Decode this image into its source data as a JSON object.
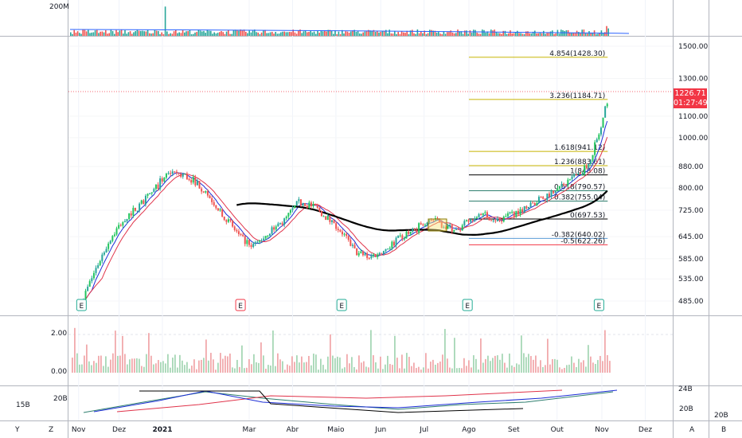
{
  "chart_data": {
    "type": "candlestick",
    "price_axis": {
      "ticks": [
        1500,
        1300,
        1100,
        1000,
        880,
        800,
        725,
        645,
        585,
        535,
        485
      ],
      "tick_labels": [
        "1500.00",
        "1300.00",
        "1100.00",
        "1000.00",
        "880.00",
        "800.00",
        "725.00",
        "645.00",
        "585.00",
        "535.00",
        "485.00"
      ],
      "ylim": [
        462,
        1600
      ],
      "scale": "log"
    },
    "time_axis": {
      "labels": [
        "Nov",
        "Dez",
        "2021",
        "Mar",
        "Abr",
        "Maio",
        "Jun",
        "Jul",
        "Ago",
        "Set",
        "Out",
        "Nov",
        "Dez"
      ],
      "range": [
        "2020-10-28",
        "2021-12-20"
      ]
    },
    "last_price": {
      "value": "1226.71",
      "countdown": "01:27:49",
      "color": "#f23645"
    },
    "fibonacci": {
      "color_lines": [
        "#c8b400",
        "#000000",
        "#2f7f6f",
        "#5b9cd6",
        "#f23645"
      ],
      "levels": [
        {
          "label": "4.854(1428.30)",
          "price": 1428.3,
          "color": "#c8b400"
        },
        {
          "label": "3.236(1184.71)",
          "price": 1184.71,
          "color": "#c8b400"
        },
        {
          "label": "1.618(941.12)",
          "price": 941.12,
          "color": "#c8b400"
        },
        {
          "label": "1.236(883.61)",
          "price": 883.61,
          "color": "#c8b400"
        },
        {
          "label": "1(848.08)",
          "price": 848.08,
          "color": "#000000"
        },
        {
          "label": "0.618(790.57)",
          "price": 790.57,
          "color": "#2f7f6f"
        },
        {
          "label": "0.382(755.04)",
          "price": 755.04,
          "color": "#2f7f6f"
        },
        {
          "label": "0(697.53)",
          "price": 697.53,
          "color": "#000000"
        },
        {
          "label": "-0.382(640.02)",
          "price": 640.02,
          "color": "#5b9cd6"
        },
        {
          "label": "-0.5(622.26)",
          "price": 622.26,
          "color": "#f23645"
        }
      ]
    },
    "price_series": {
      "dates": [
        "2020-11-06",
        "2020-11-16",
        "2020-11-26",
        "2020-12-06",
        "2020-12-16",
        "2020-12-26",
        "2021-01-05",
        "2021-01-15",
        "2021-01-25",
        "2021-02-04",
        "2021-02-14",
        "2021-02-24",
        "2021-03-06",
        "2021-03-16",
        "2021-03-26",
        "2021-04-05",
        "2021-04-15",
        "2021-04-25",
        "2021-05-05",
        "2021-05-15",
        "2021-05-25",
        "2021-06-04",
        "2021-06-14",
        "2021-06-24",
        "2021-07-04",
        "2021-07-14",
        "2021-07-24",
        "2021-08-03",
        "2021-08-13",
        "2021-08-23",
        "2021-09-02",
        "2021-09-12",
        "2021-09-22",
        "2021-10-02",
        "2021-10-12",
        "2021-10-22",
        "2021-11-01",
        "2021-11-06"
      ],
      "close": [
        480,
        560,
        640,
        700,
        740,
        790,
        860,
        850,
        820,
        760,
        700,
        640,
        620,
        660,
        690,
        750,
        740,
        700,
        660,
        600,
        590,
        610,
        640,
        660,
        700,
        680,
        660,
        700,
        710,
        690,
        720,
        740,
        770,
        800,
        840,
        880,
        1050,
        1226.71
      ]
    },
    "volume_panel": {
      "tick_labels": [
        "2.00",
        "0.00"
      ],
      "ylim": [
        0,
        2.6
      ]
    },
    "top_volume_panel": {
      "tick_label": "200M"
    },
    "bottom_panel": {
      "left_label": "15B",
      "left_tick": "20B",
      "right_ticks": [
        "24B",
        "20B",
        "20B"
      ]
    },
    "earnings_markers": [
      {
        "date": "2020-11-06",
        "label": "E",
        "color": "#22ab94"
      },
      {
        "date": "2021-02-24",
        "label": "E",
        "color": "#f23645"
      },
      {
        "date": "2021-05-05",
        "label": "E",
        "color": "#22ab94"
      },
      {
        "date": "2021-07-31",
        "label": "E",
        "color": "#22ab94"
      },
      {
        "date": "2021-10-30",
        "label": "E",
        "color": "#22ab94"
      }
    ],
    "corner_labels": {
      "left": [
        "Y",
        "Z"
      ],
      "right": [
        "A",
        "B"
      ]
    },
    "colors": {
      "up": "#26a69a",
      "up_bright": "#22c55e",
      "down": "#ef5350",
      "ma_fast": "#1c2dd6",
      "ma_mid": "#e0334a",
      "ma_slow": "#000000"
    }
  }
}
